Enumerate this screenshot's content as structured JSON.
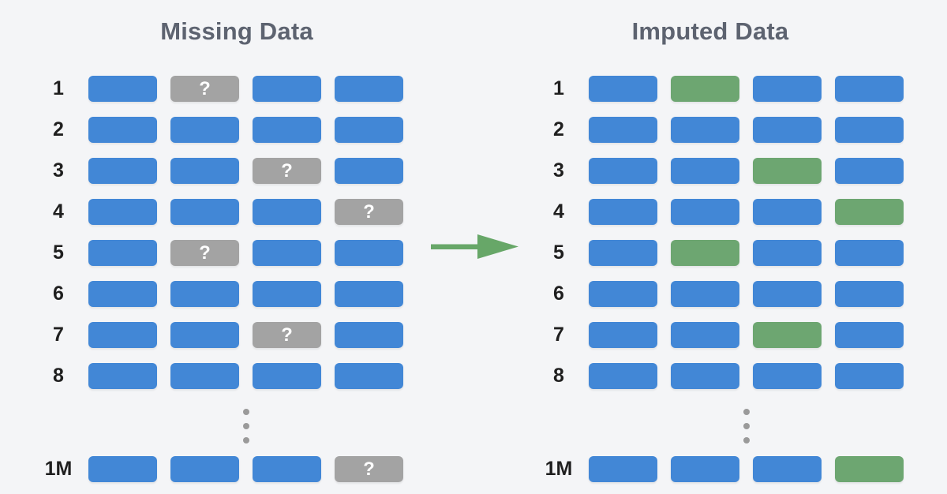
{
  "page": {
    "background": "#f4f5f7"
  },
  "palette": {
    "page_bg": "#f4f5f7",
    "observed": "#4287d6",
    "missing": "#a3a3a3",
    "imputed": "#6da671",
    "title_color": "#5d6370",
    "label_color": "#1f1f1f",
    "dot_color": "#9a9a9a",
    "arrow_color": "#67a768",
    "missing_glyph_color": "#ffffff"
  },
  "missing_marker": "?",
  "ellipsis_dot_count": 3,
  "panels": [
    {
      "id": "missing",
      "title": "Missing Data",
      "columns": 4,
      "rows": [
        {
          "label": "1",
          "cells": [
            "observed",
            "missing",
            "observed",
            "observed"
          ]
        },
        {
          "label": "2",
          "cells": [
            "observed",
            "observed",
            "observed",
            "observed"
          ]
        },
        {
          "label": "3",
          "cells": [
            "observed",
            "observed",
            "missing",
            "observed"
          ]
        },
        {
          "label": "4",
          "cells": [
            "observed",
            "observed",
            "observed",
            "missing"
          ]
        },
        {
          "label": "5",
          "cells": [
            "observed",
            "missing",
            "observed",
            "observed"
          ]
        },
        {
          "label": "6",
          "cells": [
            "observed",
            "observed",
            "observed",
            "observed"
          ]
        },
        {
          "label": "7",
          "cells": [
            "observed",
            "observed",
            "missing",
            "observed"
          ]
        },
        {
          "label": "8",
          "cells": [
            "observed",
            "observed",
            "observed",
            "observed"
          ]
        },
        {
          "ellipsis": true
        },
        {
          "label": "1M",
          "cells": [
            "observed",
            "observed",
            "observed",
            "missing"
          ]
        }
      ]
    },
    {
      "id": "imputed",
      "title": "Imputed Data",
      "columns": 4,
      "rows": [
        {
          "label": "1",
          "cells": [
            "observed",
            "imputed",
            "observed",
            "observed"
          ]
        },
        {
          "label": "2",
          "cells": [
            "observed",
            "observed",
            "observed",
            "observed"
          ]
        },
        {
          "label": "3",
          "cells": [
            "observed",
            "observed",
            "imputed",
            "observed"
          ]
        },
        {
          "label": "4",
          "cells": [
            "observed",
            "observed",
            "observed",
            "imputed"
          ]
        },
        {
          "label": "5",
          "cells": [
            "observed",
            "imputed",
            "observed",
            "observed"
          ]
        },
        {
          "label": "6",
          "cells": [
            "observed",
            "observed",
            "observed",
            "observed"
          ]
        },
        {
          "label": "7",
          "cells": [
            "observed",
            "observed",
            "imputed",
            "observed"
          ]
        },
        {
          "label": "8",
          "cells": [
            "observed",
            "observed",
            "observed",
            "observed"
          ]
        },
        {
          "ellipsis": true
        },
        {
          "label": "1M",
          "cells": [
            "observed",
            "observed",
            "observed",
            "imputed"
          ]
        }
      ]
    }
  ],
  "arrow": {
    "direction": "right"
  }
}
